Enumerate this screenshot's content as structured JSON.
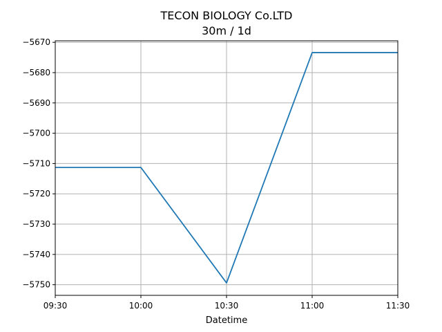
{
  "chart_data": {
    "type": "line",
    "title": "TECON BIOLOGY Co.LTD",
    "subtitle": "30m / 1d",
    "xlabel": "Datetime",
    "ylabel": "",
    "x": [
      "09:30",
      "10:00",
      "10:30",
      "11:00",
      "11:30"
    ],
    "xticks": [
      "09:30",
      "10:00",
      "10:30",
      "11:00",
      "11:30"
    ],
    "series": [
      {
        "color": "#1f77b4",
        "values": [
          -5711.3,
          -5711.3,
          -5749.4,
          -5673.4,
          -5673.4
        ]
      }
    ],
    "ylim": [
      -5753.5,
      -5669.5
    ],
    "yticks": [
      -5670,
      -5680,
      -5690,
      -5700,
      -5710,
      -5720,
      -5730,
      -5740,
      -5750
    ],
    "ytick_labels": [
      "−5670",
      "−5680",
      "−5690",
      "−5700",
      "−5710",
      "−5720",
      "−5730",
      "−5740",
      "−5750"
    ],
    "grid": true,
    "legend": "none"
  }
}
